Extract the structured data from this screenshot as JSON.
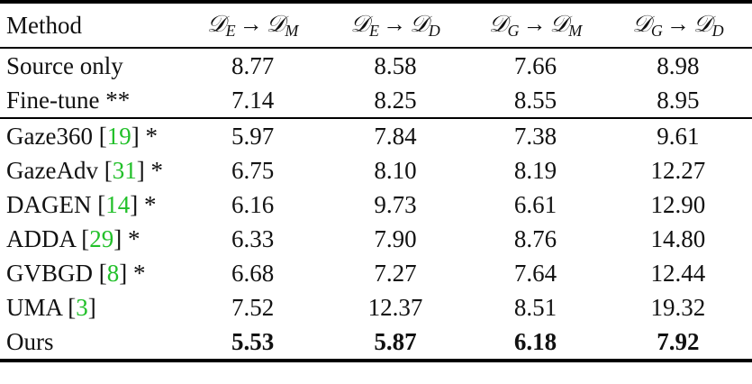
{
  "columns": {
    "method": "Method",
    "domains": [
      {
        "from": "𝒟",
        "from_sub": "E",
        "arrow": "→",
        "to": "𝒟",
        "to_sub": "M"
      },
      {
        "from": "𝒟",
        "from_sub": "E",
        "arrow": "→",
        "to": "𝒟",
        "to_sub": "D"
      },
      {
        "from": "𝒟",
        "from_sub": "G",
        "arrow": "→",
        "to": "𝒟",
        "to_sub": "M"
      },
      {
        "from": "𝒟",
        "from_sub": "G",
        "arrow": "→",
        "to": "𝒟",
        "to_sub": "D"
      }
    ]
  },
  "rows": [
    {
      "method": "Source only",
      "ref_open": "",
      "ref": "",
      "ref_close": "",
      "suffix": "",
      "values": [
        "8.77",
        "8.58",
        "7.66",
        "8.98"
      ]
    },
    {
      "method": "Fine-tune **",
      "ref_open": "",
      "ref": "",
      "ref_close": "",
      "suffix": "",
      "values": [
        "7.14",
        "8.25",
        "8.55",
        "8.95"
      ]
    },
    {
      "method": "Gaze360 ",
      "ref_open": "[",
      "ref": "19",
      "ref_close": "]",
      "suffix": " *",
      "values": [
        "5.97",
        "7.84",
        "7.38",
        "9.61"
      ]
    },
    {
      "method": "GazeAdv ",
      "ref_open": "[",
      "ref": "31",
      "ref_close": "]",
      "suffix": " *",
      "values": [
        "6.75",
        "8.10",
        "8.19",
        "12.27"
      ]
    },
    {
      "method": "DAGEN ",
      "ref_open": "[",
      "ref": "14",
      "ref_close": "]",
      "suffix": " *",
      "values": [
        "6.16",
        "9.73",
        "6.61",
        "12.90"
      ]
    },
    {
      "method": "ADDA ",
      "ref_open": "[",
      "ref": "29",
      "ref_close": "]",
      "suffix": " *",
      "values": [
        "6.33",
        "7.90",
        "8.76",
        "14.80"
      ]
    },
    {
      "method": "GVBGD ",
      "ref_open": "[",
      "ref": "8",
      "ref_close": "]",
      "suffix": " *",
      "values": [
        "6.68",
        "7.27",
        "7.64",
        "12.44"
      ]
    },
    {
      "method": "UMA ",
      "ref_open": "[",
      "ref": "3",
      "ref_close": "]",
      "suffix": "",
      "values": [
        "7.52",
        "12.37",
        "8.51",
        "19.32"
      ]
    },
    {
      "method": "Ours",
      "ref_open": "",
      "ref": "",
      "ref_close": "",
      "suffix": "",
      "values": [
        "5.53",
        "5.87",
        "6.18",
        "7.92"
      ]
    }
  ],
  "colors": {
    "reference_link": "#22c02a",
    "text": "#111111",
    "rule": "#000000"
  }
}
